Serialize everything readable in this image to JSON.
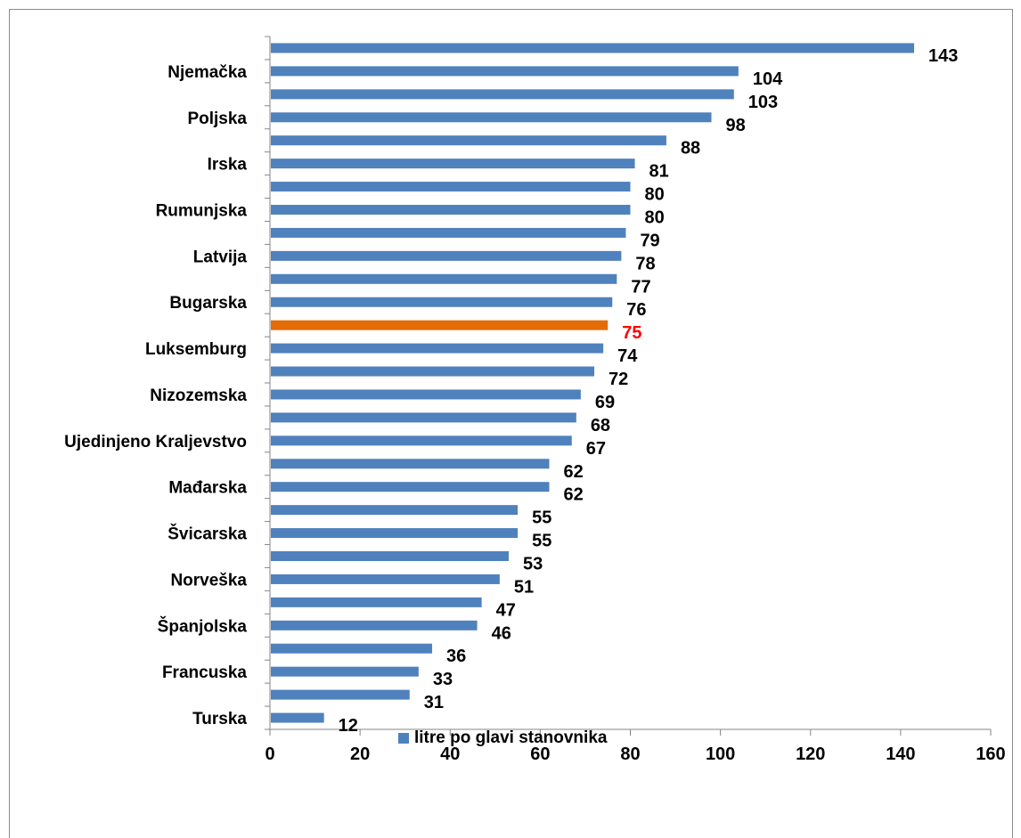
{
  "chart_data": {
    "type": "bar",
    "orientation": "horizontal",
    "category_labels": [
      "Njemačka",
      "Poljska",
      "Irska",
      "Rumunjska",
      "Latvija",
      "Bugarska",
      "Luksemburg",
      "Nizozemska",
      "Ujedinjeno Kraljevstvo",
      "Mađarska",
      "Švicarska",
      "Norveška",
      "Španjolska",
      "Francuska",
      "Turska"
    ],
    "bars_top_to_bottom": [
      {
        "label": "",
        "value": 143
      },
      {
        "label": "Njemačka",
        "value": 104
      },
      {
        "label": "",
        "value": 103
      },
      {
        "label": "Poljska",
        "value": 98
      },
      {
        "label": "",
        "value": 88
      },
      {
        "label": "Irska",
        "value": 81
      },
      {
        "label": "",
        "value": 80
      },
      {
        "label": "Rumunjska",
        "value": 80
      },
      {
        "label": "",
        "value": 79
      },
      {
        "label": "Latvija",
        "value": 78
      },
      {
        "label": "",
        "value": 77
      },
      {
        "label": "Bugarska",
        "value": 76
      },
      {
        "label": "",
        "value": 75,
        "highlight": true
      },
      {
        "label": "Luksemburg",
        "value": 74
      },
      {
        "label": "",
        "value": 72
      },
      {
        "label": "Nizozemska",
        "value": 69
      },
      {
        "label": "",
        "value": 68
      },
      {
        "label": "Ujedinjeno Kraljevstvo",
        "value": 67
      },
      {
        "label": "",
        "value": 62
      },
      {
        "label": "Mađarska",
        "value": 62
      },
      {
        "label": "",
        "value": 55
      },
      {
        "label": "Švicarska",
        "value": 55
      },
      {
        "label": "",
        "value": 53
      },
      {
        "label": "Norveška",
        "value": 51
      },
      {
        "label": "",
        "value": 47
      },
      {
        "label": "Španjolska",
        "value": 46
      },
      {
        "label": "",
        "value": 36
      },
      {
        "label": "Francuska",
        "value": 33
      },
      {
        "label": "",
        "value": 31
      },
      {
        "label": "Turska",
        "value": 12
      }
    ],
    "xlim": [
      0,
      160
    ],
    "xticks": [
      0,
      20,
      40,
      60,
      80,
      100,
      120,
      140,
      160
    ],
    "series_name": "litre po glavi stanovnika",
    "grid": false,
    "legend_position": "bottom",
    "colors": {
      "bar": "#4f81bd",
      "highlight_bar": "#e36c09",
      "highlight_label": "#ff0000",
      "label": "#000000",
      "axis": "#868686"
    }
  }
}
